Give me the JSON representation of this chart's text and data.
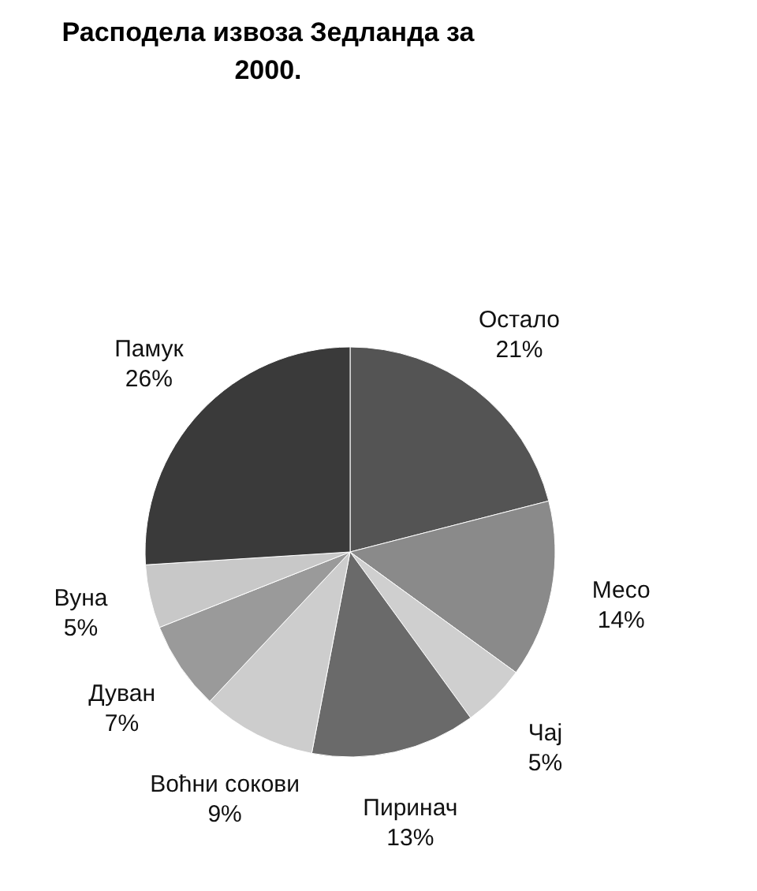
{
  "chart_data": {
    "type": "pie",
    "title": "Расподела извоза Зедланда за 2000.",
    "categories": [
      "Остало",
      "Месо",
      "Чај",
      "Пиринач",
      "Воћни сокови",
      "Дуван",
      "Вуна",
      "Памук"
    ],
    "values": [
      21,
      14,
      5,
      13,
      9,
      7,
      5,
      26
    ],
    "value_labels": [
      "21%",
      "14%",
      "5%",
      "13%",
      "9%",
      "7%",
      "5%",
      "26%"
    ],
    "colors": [
      "#545454",
      "#8a8a8a",
      "#cfcfcf",
      "#6a6a6a",
      "#cdcdcd",
      "#9a9a9a",
      "#c8c8c8",
      "#3a3a3a"
    ]
  }
}
